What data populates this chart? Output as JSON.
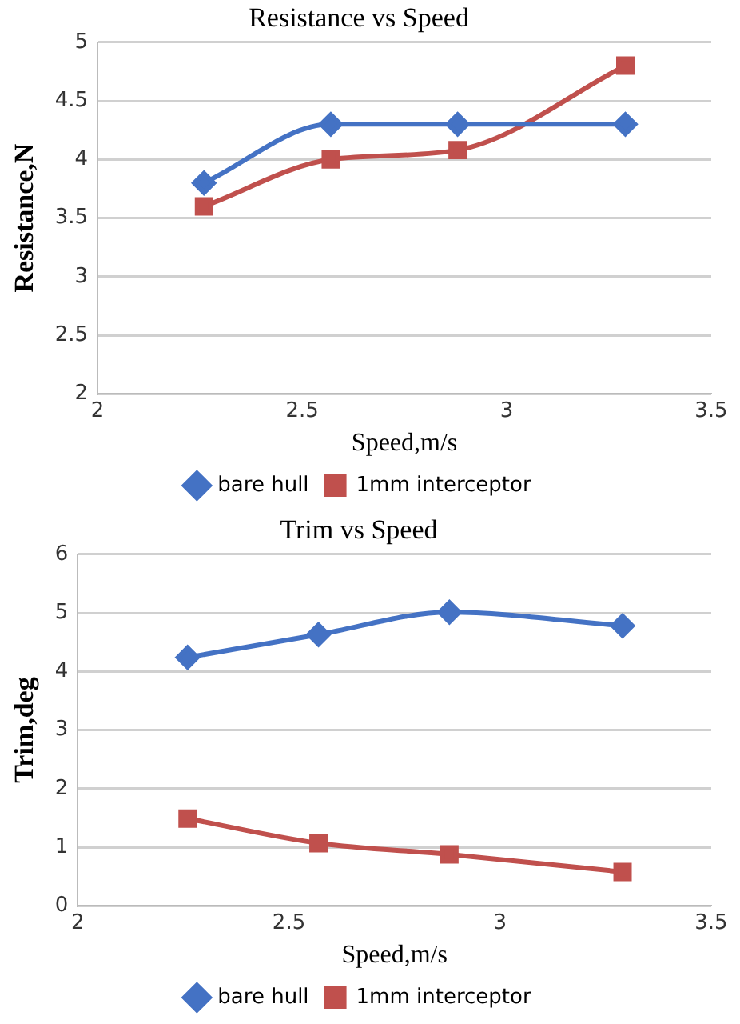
{
  "chart_data": [
    {
      "type": "line",
      "title": "Resistance vs Speed",
      "xlabel": "Speed,m/s",
      "ylabel": "Resistance,N",
      "xlim": [
        2,
        3.5
      ],
      "xticks": [
        2,
        2.5,
        3,
        3.5
      ],
      "ylim": [
        2,
        5
      ],
      "yticks": [
        2,
        2.5,
        3,
        3.5,
        4,
        4.5,
        5
      ],
      "grid": "y",
      "legend": "bottom",
      "series": [
        {
          "name": "bare hull",
          "color": "#4472c4",
          "marker": "diamond",
          "x": [
            2.26,
            2.57,
            2.88,
            3.29
          ],
          "values": [
            3.8,
            4.3,
            4.3,
            4.3
          ]
        },
        {
          "name": "1mm interceptor",
          "color": "#c0504d",
          "marker": "square",
          "x": [
            2.26,
            2.57,
            2.88,
            3.29
          ],
          "values": [
            3.6,
            4.0,
            4.08,
            4.8
          ]
        }
      ]
    },
    {
      "type": "line",
      "title": "Trim vs Speed",
      "xlabel": "Speed,m/s",
      "ylabel": "Trim,deg",
      "xlim": [
        2,
        3.5
      ],
      "xticks": [
        2,
        2.5,
        3,
        3.5
      ],
      "ylim": [
        0,
        6
      ],
      "yticks": [
        0,
        1,
        2,
        3,
        4,
        5,
        6
      ],
      "grid": "y",
      "legend": "bottom",
      "series": [
        {
          "name": "bare hull",
          "color": "#4472c4",
          "marker": "diamond",
          "x": [
            2.26,
            2.57,
            2.88,
            3.29
          ],
          "values": [
            4.24,
            4.63,
            5.01,
            4.78
          ]
        },
        {
          "name": "1mm interceptor",
          "color": "#c0504d",
          "marker": "square",
          "x": [
            2.26,
            2.57,
            2.88,
            3.29
          ],
          "values": [
            1.49,
            1.07,
            0.88,
            0.58
          ]
        }
      ]
    }
  ]
}
